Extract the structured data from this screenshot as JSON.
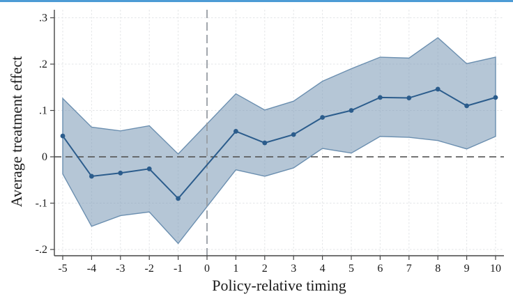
{
  "window": {
    "top_strip_color": "#4D9BD5"
  },
  "chart_data": {
    "type": "line",
    "title": "",
    "xlabel": "Policy-relative timing",
    "ylabel": "Average treatment effect",
    "xlim": [
      -5.29,
      10.29
    ],
    "ylim": [
      -0.2135,
      0.3173
    ],
    "grid": true,
    "legend": "none",
    "x_ticks": [
      {
        "value": -5,
        "label": "-5"
      },
      {
        "value": -4,
        "label": "-4"
      },
      {
        "value": -3,
        "label": "-3"
      },
      {
        "value": -2,
        "label": "-2"
      },
      {
        "value": -1,
        "label": "-1"
      },
      {
        "value": 0,
        "label": "0"
      },
      {
        "value": 1,
        "label": "1"
      },
      {
        "value": 2,
        "label": "2"
      },
      {
        "value": 3,
        "label": "3"
      },
      {
        "value": 4,
        "label": "4"
      },
      {
        "value": 5,
        "label": "5"
      },
      {
        "value": 6,
        "label": "6"
      },
      {
        "value": 7,
        "label": "7"
      },
      {
        "value": 8,
        "label": "8"
      },
      {
        "value": 9,
        "label": "9"
      },
      {
        "value": 10,
        "label": "10"
      }
    ],
    "y_ticks": [
      {
        "value": 0.3,
        "label": ".3"
      },
      {
        "value": 0.2,
        "label": ".2"
      },
      {
        "value": 0.1,
        "label": ".1"
      },
      {
        "value": 0,
        "label": "0"
      },
      {
        "value": -0.1,
        "label": "-.1"
      },
      {
        "value": -0.2,
        "label": "-.2"
      }
    ],
    "ref_lines": {
      "horizontal_y": 0,
      "vertical_x": 0
    },
    "series": [
      {
        "name": "Average treatment effect",
        "x": [
          -5,
          -4,
          -3,
          -2,
          -1,
          1,
          2,
          3,
          4,
          5,
          6,
          7,
          8,
          9,
          10
        ],
        "estimate": [
          0.045,
          -0.042,
          -0.035,
          -0.026,
          -0.09,
          0.055,
          0.03,
          0.048,
          0.085,
          0.1,
          0.128,
          0.127,
          0.146,
          0.11,
          0.128
        ],
        "ci_upper": [
          0.126,
          0.064,
          0.056,
          0.067,
          0.006,
          0.136,
          0.101,
          0.12,
          0.163,
          0.19,
          0.215,
          0.213,
          0.257,
          0.201,
          0.215
        ],
        "ci_lower": [
          -0.037,
          -0.15,
          -0.127,
          -0.119,
          -0.187,
          -0.028,
          -0.042,
          -0.024,
          0.018,
          0.008,
          0.044,
          0.042,
          0.035,
          0.017,
          0.044
        ]
      }
    ],
    "band_opacity": 0.58,
    "colors": {
      "line": "#2B5C8C",
      "marker": "#2B5C8C",
      "band_fill": "#7F9CB8",
      "band_edge": "#6B8FB0",
      "grid": "#E3E5E7",
      "ref_line_h": "#555555",
      "ref_line_v": "#979DA3",
      "axis": "#454545",
      "text": "#1A1A1A"
    }
  }
}
